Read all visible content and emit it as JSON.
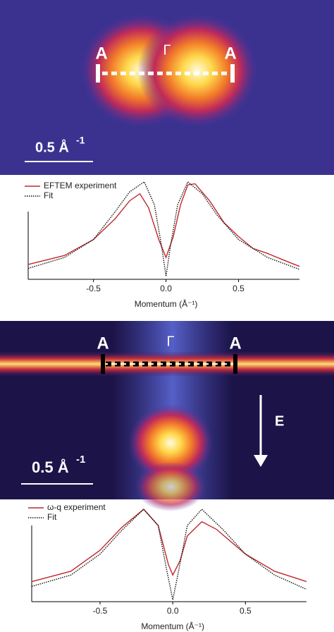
{
  "images": [
    {
      "labels": [
        "A",
        "Γ",
        "A"
      ],
      "scale_label": "0.5 Å",
      "scale_exponent": "-1"
    },
    {
      "labels": [
        "A",
        "Γ",
        "A"
      ],
      "arrow_label": "E",
      "scale_label": "0.5 Å",
      "scale_exponent": "-1"
    }
  ],
  "chart_data": [
    {
      "type": "line",
      "xlabel": "Momentum (Å⁻¹)",
      "xlim": [
        -0.95,
        0.92
      ],
      "ylim": [
        0,
        1
      ],
      "xticks": [
        -0.5,
        {
          "value": 0,
          "label": "0.0"
        },
        0.5
      ],
      "series": [
        {
          "name": "EFTEM experiment",
          "color": "#c0282d",
          "style": "solid",
          "x": [
            -0.95,
            -0.7,
            -0.5,
            -0.35,
            -0.25,
            -0.18,
            -0.12,
            -0.05,
            0,
            0.05,
            0.1,
            0.15,
            0.2,
            0.3,
            0.4,
            0.5,
            0.6,
            0.7,
            0.8,
            0.92
          ],
          "values": [
            0.15,
            0.24,
            0.4,
            0.61,
            0.79,
            0.86,
            0.72,
            0.4,
            0.22,
            0.43,
            0.75,
            0.95,
            0.96,
            0.79,
            0.57,
            0.43,
            0.31,
            0.26,
            0.2,
            0.13
          ]
        },
        {
          "name": "Fit",
          "color": "#111111",
          "style": "dotted",
          "x": [
            -0.95,
            -0.7,
            -0.5,
            -0.35,
            -0.25,
            -0.15,
            -0.08,
            -0.03,
            0,
            0.03,
            0.08,
            0.15,
            0.25,
            0.35,
            0.5,
            0.7,
            0.92
          ],
          "values": [
            0.11,
            0.22,
            0.4,
            0.68,
            0.88,
            0.98,
            0.75,
            0.33,
            0.03,
            0.33,
            0.75,
            0.98,
            0.86,
            0.65,
            0.4,
            0.22,
            0.1
          ]
        }
      ]
    },
    {
      "type": "line",
      "xlabel": "Momentum (Å⁻¹)",
      "xlim": [
        -0.97,
        0.92
      ],
      "ylim": [
        0,
        1
      ],
      "xticks": [
        -0.5,
        {
          "value": 0,
          "label": "0.0"
        },
        0.5
      ],
      "series": [
        {
          "name": "ω-q experiment",
          "color": "#c0282d",
          "style": "solid",
          "x": [
            -0.97,
            -0.7,
            -0.5,
            -0.35,
            -0.2,
            -0.1,
            -0.03,
            0,
            0.05,
            0.1,
            0.2,
            0.3,
            0.5,
            0.7,
            0.92
          ],
          "values": [
            0.21,
            0.32,
            0.54,
            0.78,
            0.97,
            0.8,
            0.39,
            0.28,
            0.43,
            0.69,
            0.84,
            0.76,
            0.5,
            0.32,
            0.21
          ]
        },
        {
          "name": "Fit",
          "color": "#111111",
          "style": "dotted",
          "x": [
            -0.97,
            -0.7,
            -0.5,
            -0.35,
            -0.2,
            -0.1,
            -0.04,
            0,
            0.04,
            0.1,
            0.2,
            0.35,
            0.5,
            0.7,
            0.92
          ],
          "values": [
            0.16,
            0.28,
            0.5,
            0.75,
            0.97,
            0.8,
            0.32,
            0.02,
            0.32,
            0.8,
            0.97,
            0.75,
            0.5,
            0.28,
            0.13
          ]
        }
      ]
    }
  ]
}
